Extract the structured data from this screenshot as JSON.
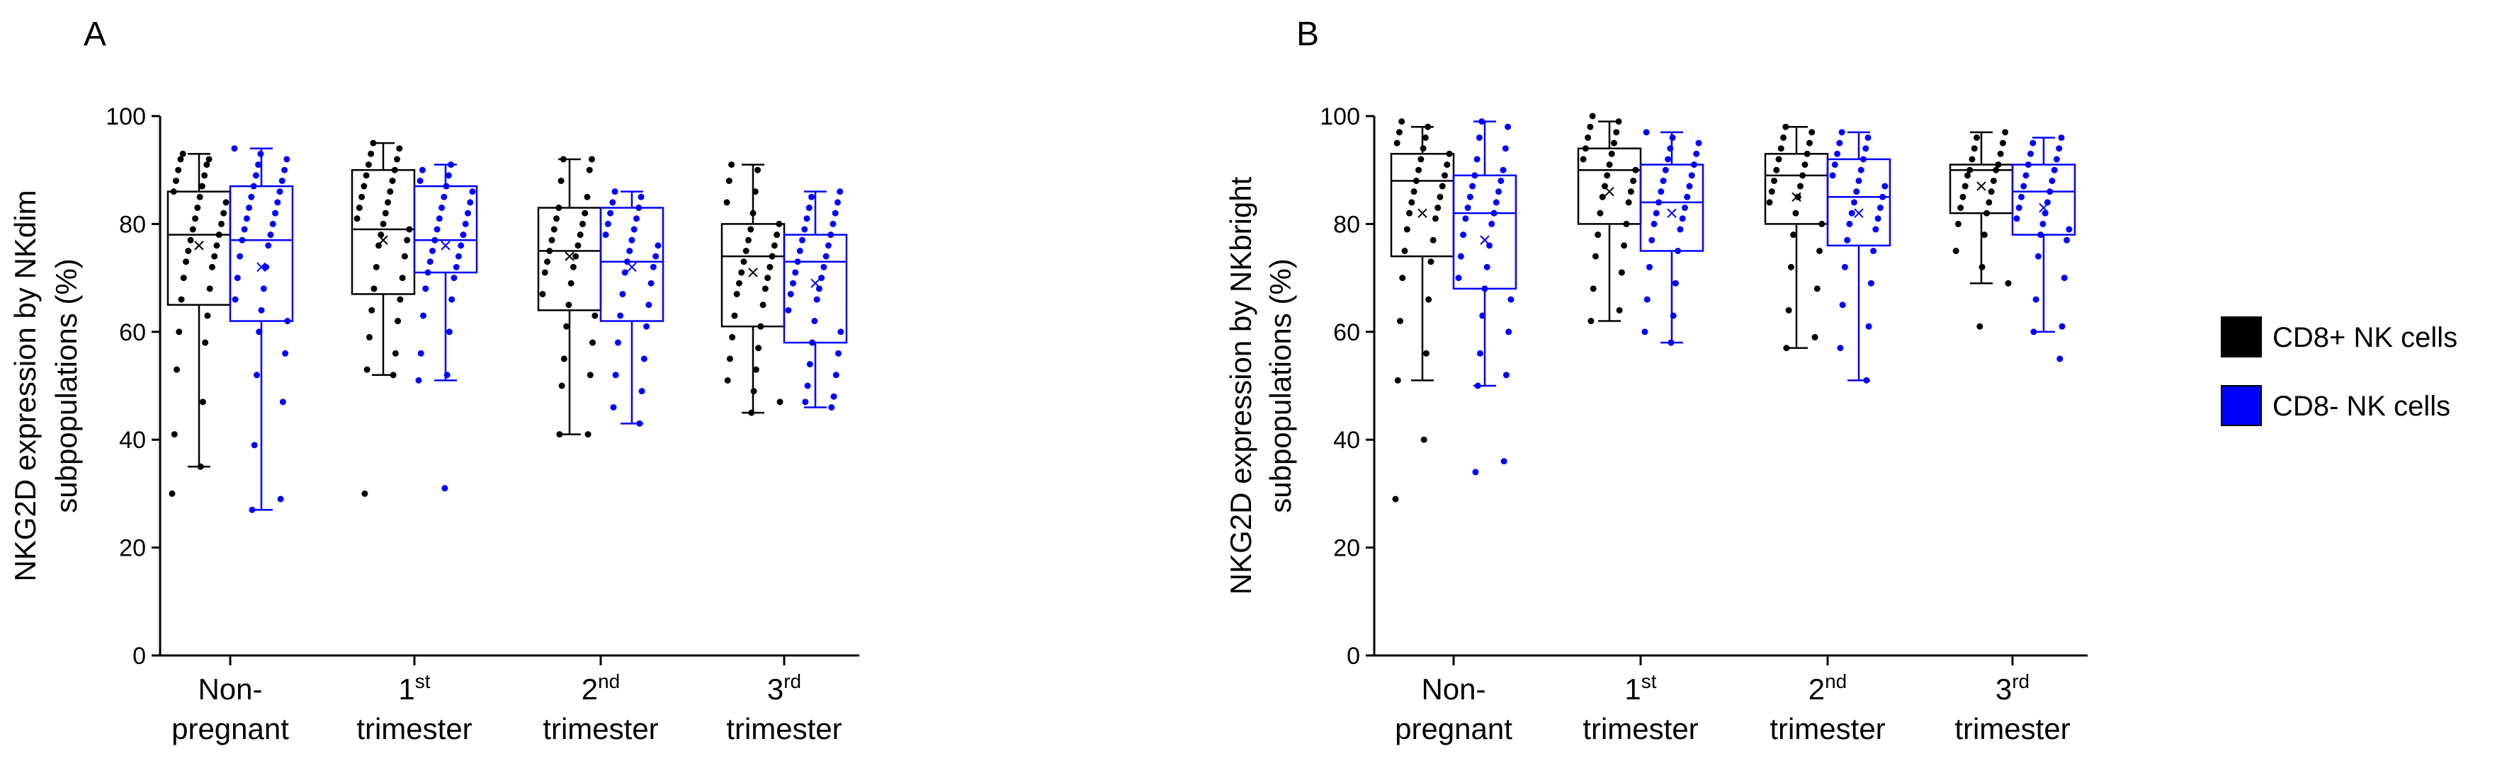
{
  "colors": {
    "cd8pos": "#000000",
    "cd8neg": "#0000ff",
    "axis": "#000000"
  },
  "legend": [
    {
      "label": "CD8+ NK cells",
      "color": "#000000"
    },
    {
      "label": "CD8- NK cells",
      "color": "#0000ff"
    }
  ],
  "chart_data": [
    {
      "type": "box",
      "panel": "A",
      "ylabel_line1": "NKG2D expression by NKdim",
      "ylabel_line2": "subpopulations (%)",
      "ylim": [
        0,
        100
      ],
      "yticks": [
        "0",
        "20",
        "40",
        "60",
        "80",
        "100"
      ],
      "categories": [
        {
          "line1": "Non-",
          "line1_sup": "",
          "line2": "pregnant"
        },
        {
          "line1": "1",
          "line1_sup": "st",
          "line2": "trimester"
        },
        {
          "line1": "2",
          "line1_sup": "nd",
          "line2": "trimester"
        },
        {
          "line1": "3",
          "line1_sup": "rd",
          "line2": "trimester"
        }
      ],
      "series": [
        {
          "name": "CD8+ NK cells",
          "boxes": [
            {
              "whisker_low": 35,
              "q1": 65,
              "median": 78,
              "mean": 76,
              "q3": 86,
              "whisker_high": 93,
              "points": [
                30,
                35,
                41,
                47,
                53,
                58,
                60,
                63,
                66,
                68,
                70,
                72,
                73,
                74,
                75,
                76,
                77,
                78,
                79,
                80,
                81,
                82,
                83,
                84,
                85,
                86,
                87,
                88,
                89,
                90,
                91,
                92,
                92,
                93
              ]
            },
            {
              "whisker_low": 52,
              "q1": 67,
              "median": 79,
              "mean": 77,
              "q3": 90,
              "whisker_high": 95,
              "points": [
                30,
                52,
                53,
                56,
                59,
                62,
                64,
                66,
                68,
                70,
                72,
                74,
                76,
                77,
                78,
                79,
                80,
                81,
                82,
                83,
                84,
                85,
                86,
                87,
                88,
                89,
                90,
                91,
                92,
                93,
                94,
                95
              ]
            },
            {
              "whisker_low": 41,
              "q1": 64,
              "median": 75,
              "mean": 74,
              "q3": 83,
              "whisker_high": 92,
              "points": [
                41,
                41,
                50,
                52,
                55,
                58,
                61,
                63,
                65,
                67,
                69,
                71,
                72,
                73,
                74,
                75,
                76,
                77,
                78,
                79,
                80,
                81,
                82,
                83,
                85,
                88,
                90,
                92,
                92
              ]
            },
            {
              "whisker_low": 45,
              "q1": 61,
              "median": 74,
              "mean": 71,
              "q3": 80,
              "whisker_high": 91,
              "points": [
                45,
                47,
                49,
                51,
                53,
                55,
                57,
                59,
                61,
                63,
                65,
                67,
                68,
                69,
                70,
                71,
                72,
                73,
                74,
                75,
                76,
                77,
                78,
                79,
                80,
                82,
                84,
                86,
                88,
                90,
                91
              ]
            }
          ]
        },
        {
          "name": "CD8- NK cells",
          "boxes": [
            {
              "whisker_low": 27,
              "q1": 62,
              "median": 77,
              "mean": 72,
              "q3": 87,
              "whisker_high": 94,
              "points": [
                27,
                29,
                39,
                47,
                52,
                56,
                60,
                62,
                64,
                66,
                68,
                70,
                72,
                74,
                76,
                77,
                78,
                79,
                80,
                81,
                82,
                83,
                84,
                85,
                86,
                87,
                88,
                89,
                90,
                91,
                92,
                93,
                94
              ]
            },
            {
              "whisker_low": 51,
              "q1": 71,
              "median": 77,
              "mean": 76,
              "q3": 87,
              "whisker_high": 91,
              "points": [
                31,
                51,
                52,
                56,
                60,
                63,
                66,
                68,
                70,
                71,
                72,
                73,
                74,
                75,
                76,
                77,
                78,
                79,
                80,
                81,
                82,
                83,
                84,
                85,
                86,
                87,
                88,
                89,
                90,
                91
              ]
            },
            {
              "whisker_low": 43,
              "q1": 62,
              "median": 73,
              "mean": 72,
              "q3": 83,
              "whisker_high": 86,
              "points": [
                43,
                46,
                49,
                52,
                55,
                58,
                61,
                63,
                65,
                67,
                69,
                71,
                72,
                73,
                74,
                75,
                76,
                77,
                78,
                79,
                80,
                81,
                82,
                83,
                84,
                85,
                86
              ]
            },
            {
              "whisker_low": 46,
              "q1": 58,
              "median": 73,
              "mean": 69,
              "q3": 78,
              "whisker_high": 86,
              "points": [
                46,
                47,
                48,
                50,
                52,
                54,
                56,
                58,
                60,
                62,
                64,
                66,
                67,
                68,
                69,
                70,
                71,
                72,
                73,
                74,
                75,
                76,
                77,
                78,
                79,
                80,
                81,
                82,
                83,
                84,
                85,
                86
              ]
            }
          ]
        }
      ]
    },
    {
      "type": "box",
      "panel": "B",
      "ylabel_line1": "NKG2D expression by NKbright",
      "ylabel_line2": "subpopulations (%)",
      "ylim": [
        0,
        100
      ],
      "yticks": [
        "0",
        "20",
        "40",
        "60",
        "80",
        "100"
      ],
      "categories": [
        {
          "line1": "Non-",
          "line1_sup": "",
          "line2": "pregnant"
        },
        {
          "line1": "1",
          "line1_sup": "st",
          "line2": "trimester"
        },
        {
          "line1": "2",
          "line1_sup": "nd",
          "line2": "trimester"
        },
        {
          "line1": "3",
          "line1_sup": "rd",
          "line2": "trimester"
        }
      ],
      "series": [
        {
          "name": "CD8+ NK cells",
          "boxes": [
            {
              "whisker_low": 51,
              "q1": 74,
              "median": 88,
              "mean": 82,
              "q3": 93,
              "whisker_high": 98,
              "points": [
                29,
                40,
                51,
                56,
                62,
                66,
                70,
                73,
                75,
                77,
                79,
                81,
                82,
                83,
                84,
                85,
                86,
                87,
                88,
                89,
                90,
                91,
                92,
                93,
                94,
                95,
                96,
                97,
                98,
                99
              ]
            },
            {
              "whisker_low": 62,
              "q1": 80,
              "median": 90,
              "mean": 86,
              "q3": 94,
              "whisker_high": 99,
              "points": [
                62,
                64,
                68,
                71,
                74,
                76,
                78,
                80,
                82,
                84,
                85,
                86,
                87,
                88,
                89,
                90,
                91,
                92,
                93,
                94,
                95,
                96,
                97,
                98,
                99,
                100
              ]
            },
            {
              "whisker_low": 57,
              "q1": 80,
              "median": 89,
              "mean": 85,
              "q3": 93,
              "whisker_high": 98,
              "points": [
                57,
                59,
                64,
                68,
                72,
                75,
                78,
                80,
                82,
                84,
                85,
                86,
                87,
                88,
                89,
                90,
                91,
                92,
                93,
                94,
                95,
                96,
                97,
                98
              ]
            },
            {
              "whisker_low": 69,
              "q1": 82,
              "median": 90,
              "mean": 87,
              "q3": 91,
              "whisker_high": 97,
              "points": [
                61,
                69,
                72,
                75,
                78,
                80,
                82,
                83,
                84,
                85,
                86,
                87,
                88,
                89,
                90,
                90,
                91,
                92,
                93,
                94,
                95,
                96,
                97
              ]
            }
          ]
        },
        {
          "name": "CD8- NK cells",
          "boxes": [
            {
              "whisker_low": 50,
              "q1": 68,
              "median": 82,
              "mean": 77,
              "q3": 89,
              "whisker_high": 99,
              "points": [
                34,
                36,
                50,
                52,
                56,
                60,
                63,
                66,
                68,
                70,
                72,
                74,
                76,
                78,
                80,
                81,
                82,
                83,
                84,
                85,
                86,
                87,
                88,
                89,
                90,
                92,
                94,
                96,
                98,
                99
              ]
            },
            {
              "whisker_low": 58,
              "q1": 75,
              "median": 84,
              "mean": 82,
              "q3": 91,
              "whisker_high": 97,
              "points": [
                58,
                60,
                63,
                66,
                69,
                72,
                75,
                77,
                79,
                80,
                81,
                82,
                83,
                84,
                85,
                86,
                87,
                88,
                89,
                90,
                91,
                92,
                93,
                94,
                95,
                96,
                97
              ]
            },
            {
              "whisker_low": 51,
              "q1": 76,
              "median": 85,
              "mean": 82,
              "q3": 92,
              "whisker_high": 97,
              "points": [
                51,
                57,
                61,
                65,
                69,
                72,
                75,
                77,
                79,
                80,
                81,
                82,
                83,
                84,
                85,
                86,
                87,
                88,
                89,
                90,
                91,
                92,
                93,
                94,
                95,
                96,
                97
              ]
            },
            {
              "whisker_low": 60,
              "q1": 78,
              "median": 86,
              "mean": 83,
              "q3": 91,
              "whisker_high": 96,
              "points": [
                55,
                60,
                61,
                66,
                70,
                74,
                77,
                78,
                79,
                80,
                81,
                82,
                83,
                84,
                85,
                86,
                87,
                88,
                89,
                90,
                91,
                92,
                93,
                94,
                95,
                96
              ]
            }
          ]
        }
      ]
    }
  ]
}
